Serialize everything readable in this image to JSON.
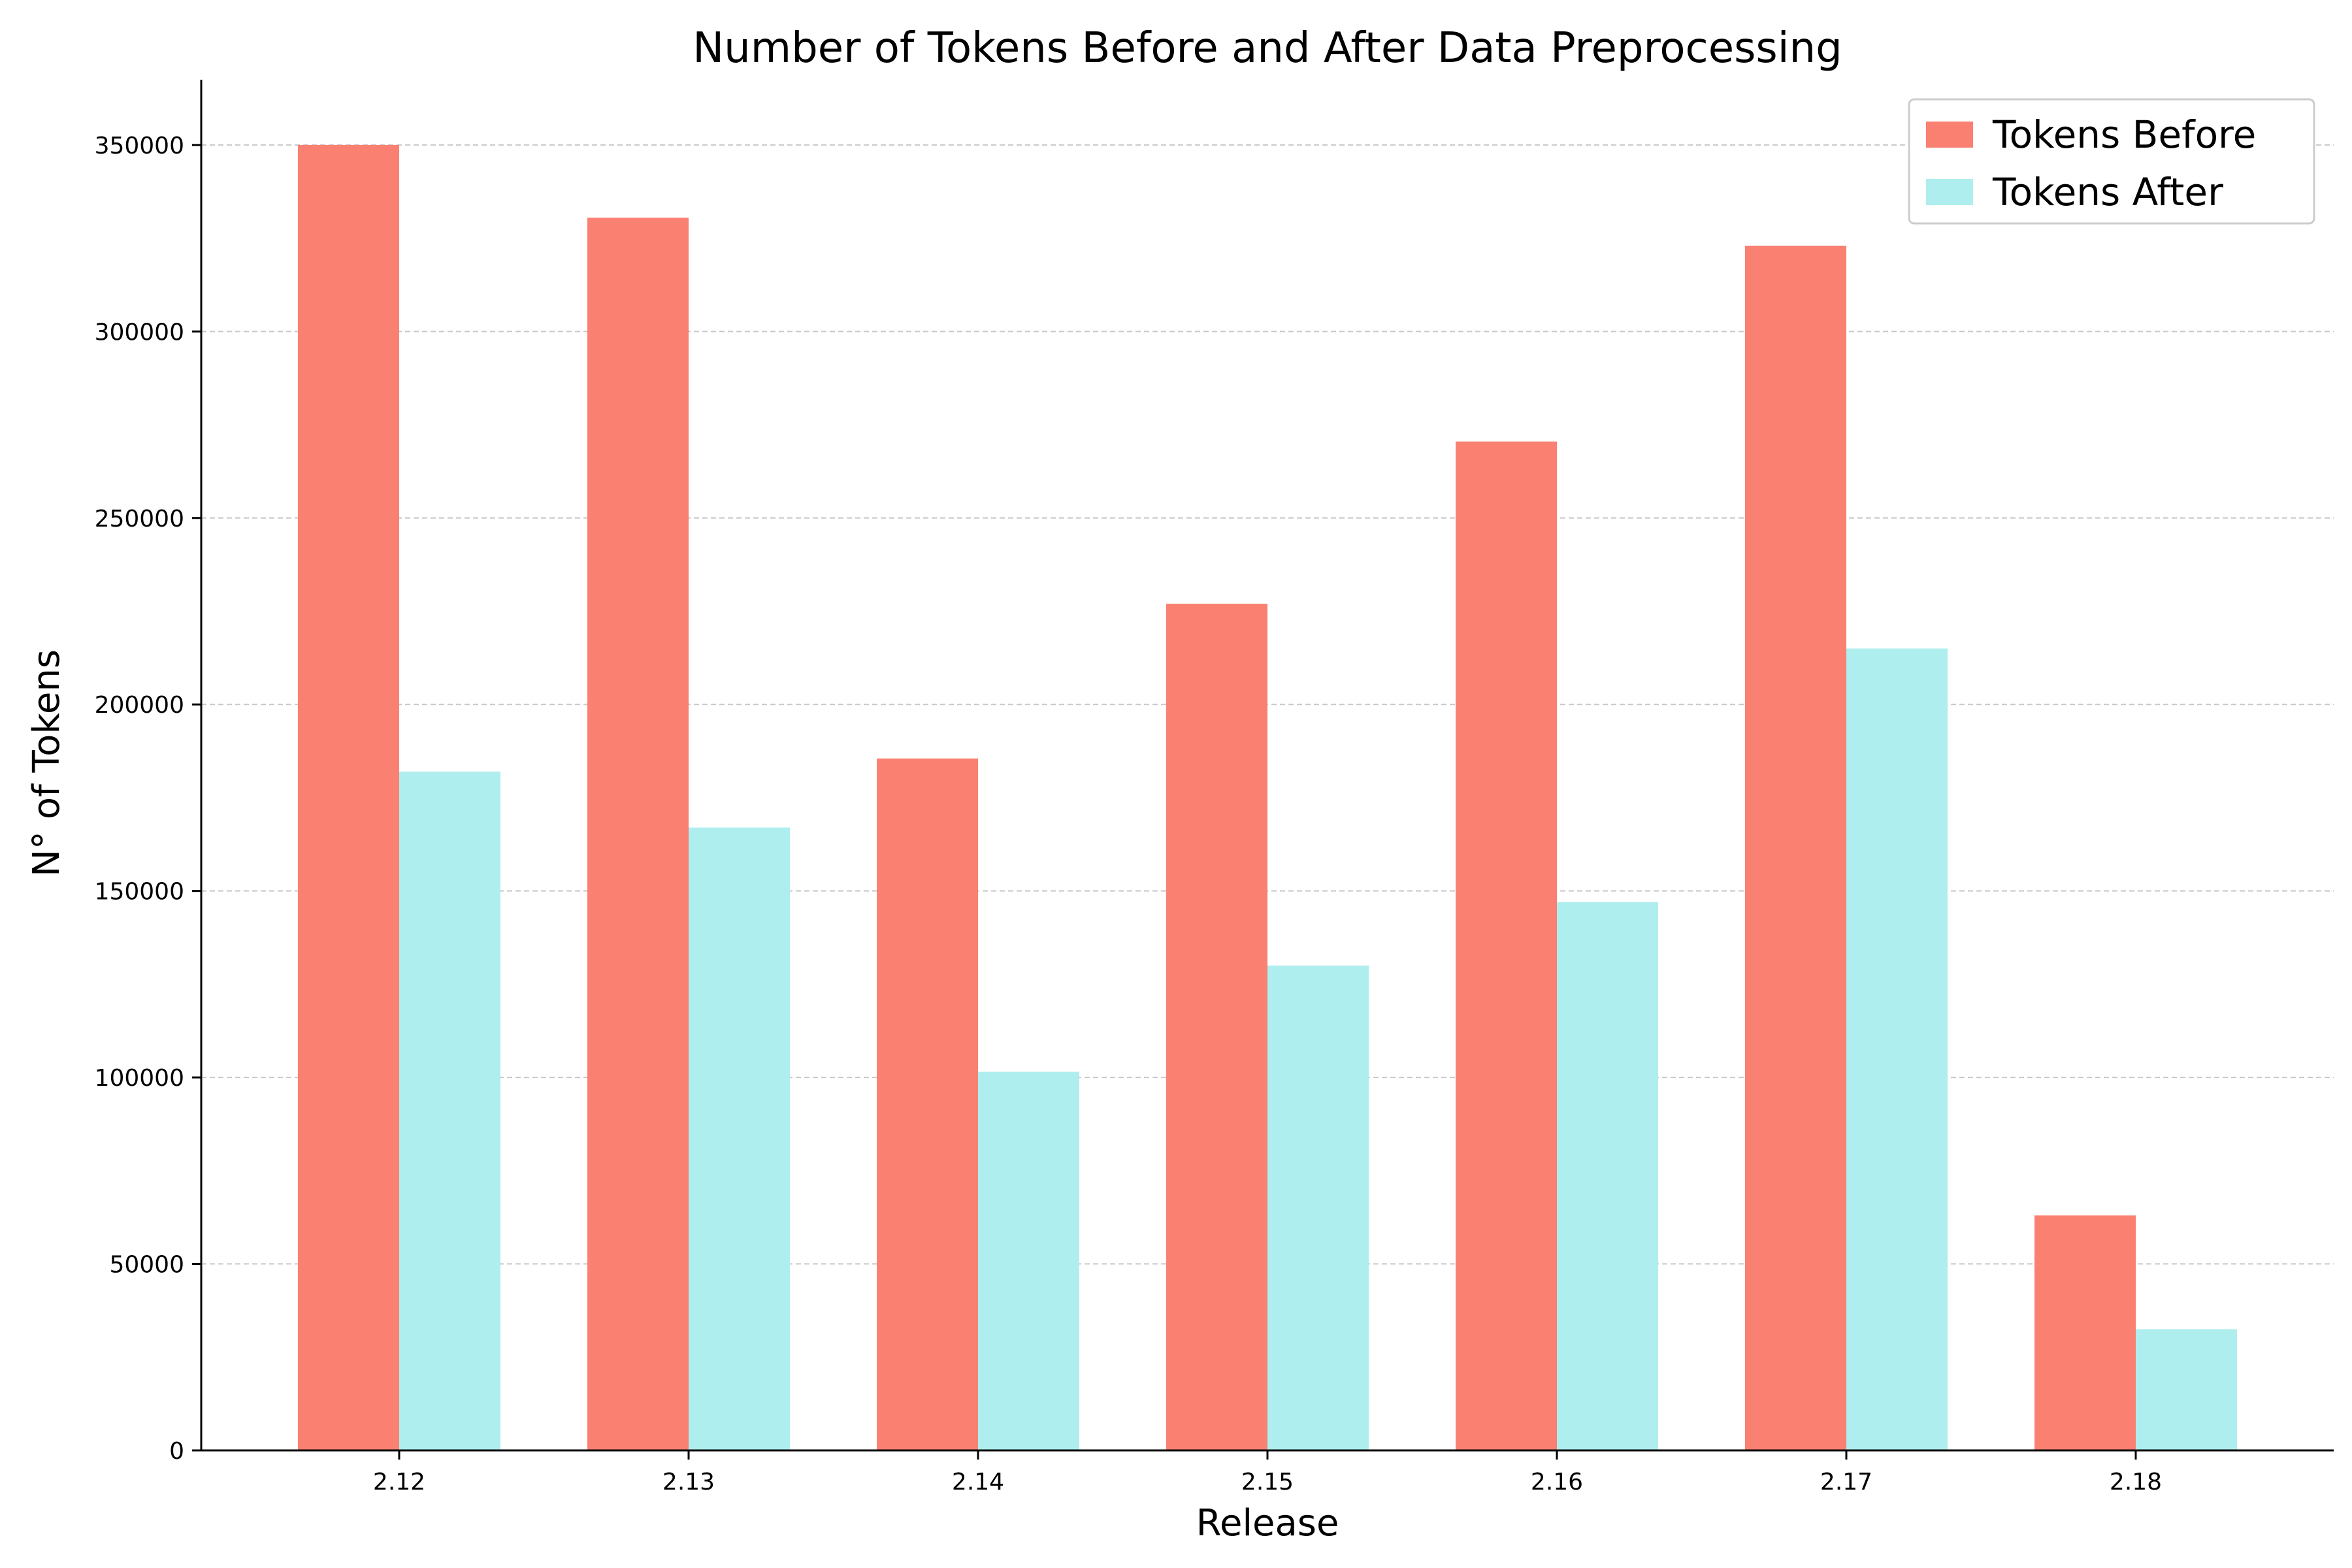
{
  "chart_data": {
    "type": "bar",
    "title": "Number of Tokens Before and After Data Preprocessing",
    "xlabel": "Release",
    "ylabel": "N° of Tokens",
    "categories": [
      "2.12",
      "2.13",
      "2.14",
      "2.15",
      "2.16",
      "2.17",
      "2.18"
    ],
    "series": [
      {
        "name": "Tokens Before",
        "color": "#fa8072",
        "values": [
          350000,
          330500,
          185500,
          227000,
          270500,
          323000,
          63000
        ]
      },
      {
        "name": "Tokens After",
        "color": "#afeeee",
        "values": [
          182000,
          167000,
          101500,
          130000,
          147000,
          215000,
          32500
        ]
      }
    ],
    "ylim": [
      0,
      367500
    ],
    "yticks": [
      0,
      50000,
      100000,
      150000,
      200000,
      250000,
      300000,
      350000
    ],
    "grid": "y-dashed",
    "legend_position": "top-right"
  }
}
